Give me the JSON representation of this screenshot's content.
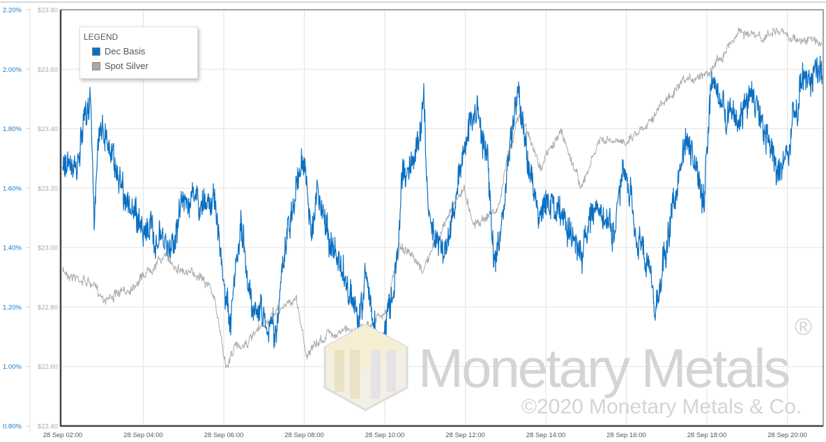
{
  "chart_data": {
    "type": "line",
    "title": "",
    "legend": {
      "title": "LEGEND",
      "placement": "top-left"
    },
    "x_axis": {
      "unit": "hour of 28 Sep",
      "range": [
        2,
        20.9
      ],
      "tick_values": [
        2,
        4,
        6,
        8,
        10,
        12,
        14,
        16,
        18,
        20
      ],
      "tick_labels": [
        "28 Sep 02:00",
        "28 Sep 04:00",
        "28 Sep 06:00",
        "28 Sep 08:00",
        "28 Sep 10:00",
        "28 Sep 12:00",
        "28 Sep 14:00",
        "28 Sep 16:00",
        "28 Sep 18:00",
        "28 Sep 20:00"
      ]
    },
    "y_left": {
      "range": [
        0.8,
        2.2
      ],
      "tick_labels": [
        "2.20%",
        "2.00%",
        "1.80%",
        "1.60%",
        "1.40%",
        "1.20%",
        "1.00%",
        "0.80%"
      ],
      "grid": true
    },
    "y_right": {
      "range": [
        22.4,
        23.8
      ],
      "tick_labels": [
        "$23.80",
        "$23.60",
        "$23.40",
        "$23.20",
        "$23.00",
        "$22.80",
        "$22.60",
        "$22.40"
      ]
    },
    "series": [
      {
        "name": "Dec Basis",
        "axis": "left",
        "unit": "%",
        "color": "#0a6fc2",
        "x": [
          2.0,
          2.35,
          2.69,
          2.78,
          2.95,
          3.39,
          3.73,
          4.25,
          4.68,
          5.03,
          5.46,
          5.72,
          5.98,
          6.16,
          6.42,
          6.68,
          7.28,
          7.54,
          7.97,
          8.15,
          8.32,
          8.67,
          9.19,
          9.36,
          9.53,
          9.88,
          10.23,
          10.45,
          10.74,
          10.97,
          11.09,
          11.52,
          12.04,
          12.3,
          12.56,
          12.74,
          13.05,
          13.31,
          13.52,
          13.77,
          14.21,
          14.47,
          14.9,
          15.16,
          15.68,
          15.94,
          16.2,
          16.63,
          16.72,
          17.06,
          17.5,
          17.93,
          18.1,
          18.54,
          18.8,
          19.06,
          19.58,
          19.75,
          20.01,
          20.36,
          20.7,
          20.87
        ],
        "values": [
          1.69,
          1.65,
          1.93,
          1.53,
          1.83,
          1.65,
          1.51,
          1.44,
          1.39,
          1.58,
          1.53,
          1.6,
          1.3,
          1.11,
          1.46,
          1.23,
          1.11,
          1.41,
          1.72,
          1.46,
          1.58,
          1.41,
          1.23,
          1.13,
          1.3,
          1.04,
          1.25,
          1.65,
          1.69,
          1.9,
          1.51,
          1.39,
          1.79,
          1.86,
          1.69,
          1.3,
          1.65,
          1.95,
          1.72,
          1.53,
          1.55,
          1.48,
          1.37,
          1.55,
          1.44,
          1.65,
          1.48,
          1.3,
          1.18,
          1.46,
          1.76,
          1.55,
          1.93,
          1.86,
          1.81,
          1.93,
          1.74,
          1.65,
          1.72,
          1.95,
          1.99,
          2.02
        ]
      },
      {
        "name": "Spot Silver",
        "axis": "right",
        "unit": "$",
        "color": "#a9a9a9",
        "x": [
          2.0,
          2.69,
          3.04,
          3.56,
          4.25,
          4.51,
          5.12,
          5.46,
          5.72,
          5.9,
          6.07,
          6.24,
          6.68,
          7.28,
          7.8,
          8.06,
          8.58,
          9.45,
          10.05,
          10.23,
          10.4,
          10.92,
          11.44,
          11.7,
          11.96,
          12.22,
          12.82,
          13.08,
          13.34,
          13.86,
          14.38,
          14.9,
          15.33,
          15.85,
          16.37,
          16.89,
          17.41,
          18.1,
          18.45,
          18.8,
          19.4,
          19.66,
          20.27,
          20.87
        ],
        "values": [
          22.92,
          22.88,
          22.83,
          22.85,
          22.94,
          22.97,
          22.91,
          22.91,
          22.85,
          22.73,
          22.59,
          22.66,
          22.69,
          22.78,
          22.83,
          22.64,
          22.71,
          22.73,
          22.78,
          22.92,
          23.01,
          22.92,
          23.06,
          23.15,
          23.2,
          23.08,
          23.13,
          23.32,
          23.46,
          23.27,
          23.39,
          23.2,
          23.36,
          23.35,
          23.4,
          23.48,
          23.55,
          23.6,
          23.66,
          23.73,
          23.7,
          23.73,
          23.7,
          23.69
        ]
      }
    ]
  },
  "watermark": {
    "brand": "Monetary Metals",
    "registered": "®",
    "copyright": "©2020 Monetary Metals & Co."
  }
}
